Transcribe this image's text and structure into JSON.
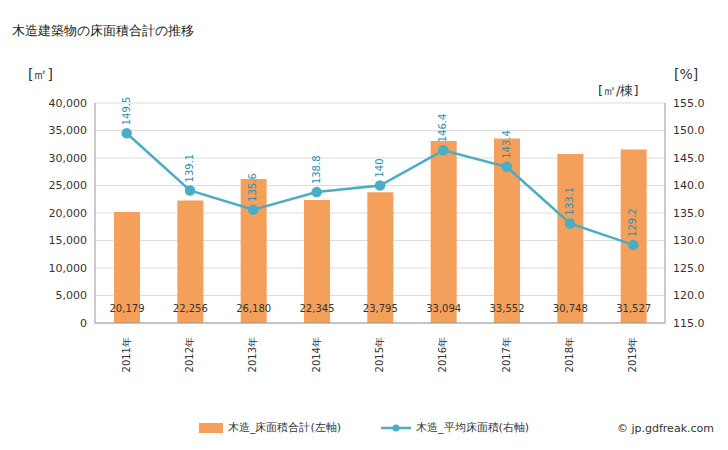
{
  "chart_data": {
    "type": "bar",
    "title": "木造建築物の床面積合計の推移",
    "y_label": "[㎡]",
    "y2_label": [
      "[%]",
      "[㎡/棟]"
    ],
    "source": "© jp.gdfreak.com",
    "categories": [
      "2011年",
      "2012年",
      "2013年",
      "2014年",
      "2015年",
      "2016年",
      "2017年",
      "2018年",
      "2019年"
    ],
    "series": [
      {
        "name": "木造_床面積合計(左軸)",
        "type": "bar",
        "color": "#f5a05a",
        "values": [
          20179,
          22256,
          26180,
          22345,
          23795,
          33094,
          33552,
          30748,
          31527
        ],
        "value_labels": [
          "20,179",
          "22,256",
          "26,180",
          "22,345",
          "23,795",
          "33,094",
          "33,552",
          "30,748",
          "31,527"
        ],
        "data_labels": true
      },
      {
        "name": "木造_平均床面積(右軸)",
        "type": "line",
        "axis": "y2",
        "color": "#4bacc6",
        "marker": "circle",
        "values": [
          149.5,
          139.1,
          135.6,
          138.8,
          140,
          146.4,
          143.4,
          133.1,
          129.2
        ],
        "data_labels": true
      }
    ],
    "ylim": [
      0,
      40000
    ],
    "yticks": [
      0,
      {
        "value": 5000,
        "label": "5,000"
      },
      {
        "value": 10000,
        "label": "10,000"
      },
      {
        "value": 15000,
        "label": "15,000"
      },
      {
        "value": 20000,
        "label": "20,000"
      },
      {
        "value": 25000,
        "label": "25,000"
      },
      {
        "value": 30000,
        "label": "30,000"
      },
      {
        "value": 35000,
        "label": "35,000"
      },
      {
        "value": 40000,
        "label": "40,000"
      }
    ],
    "y2lim": [
      115,
      155
    ],
    "y2ticks": [
      {
        "value": 115,
        "label": "115.0"
      },
      {
        "value": 120,
        "label": "120.0"
      },
      {
        "value": 125,
        "label": "125.0"
      },
      {
        "value": 130,
        "label": "130.0"
      },
      {
        "value": 135,
        "label": "135.0"
      },
      {
        "value": 140,
        "label": "140.0"
      },
      {
        "value": 145,
        "label": "145.0"
      },
      {
        "value": 150,
        "label": "150.0"
      },
      {
        "value": 155,
        "label": "155.0"
      }
    ],
    "grid": true,
    "legend": "bottom"
  }
}
